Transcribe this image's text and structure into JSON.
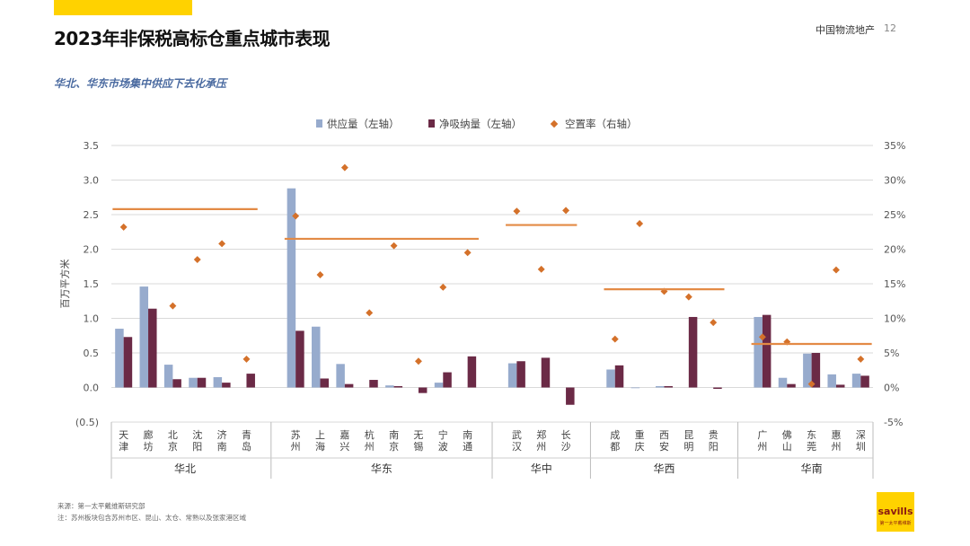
{
  "header": {
    "title": "2023年非保税高标仓重点城市表现",
    "brand": "中国物流地产",
    "page_number": "12",
    "subtitle": "华北、华东市场集中供应下去化承压"
  },
  "footnotes": {
    "source": "来源：第一太平戴维斯研究部",
    "note": "注：苏州板块包含苏州市区、昆山、太仓、常熟以及张家港区域"
  },
  "logo": {
    "wordmark": "savills",
    "sub": "第一太平戴维斯"
  },
  "colors": {
    "supply": "#97abcd",
    "absorption": "#6b2a46",
    "vacancy": "#d4712a",
    "avg_line": "#e38a45",
    "grid": "#d9d9d9",
    "brand_yellow": "#ffd200"
  },
  "chart_data": {
    "type": "bar",
    "legend_position": "top",
    "ylabel": "百万平方米",
    "ylim": [
      -0.5,
      3.5
    ],
    "yticks": [
      "(0.5)",
      "0.0",
      "0.5",
      "1.0",
      "1.5",
      "2.0",
      "2.5",
      "3.0",
      "3.5"
    ],
    "y2lim": [
      -5,
      35
    ],
    "y2ticks": [
      "-5%",
      "0%",
      "5%",
      "10%",
      "15%",
      "20%",
      "25%",
      "30%",
      "35%"
    ],
    "grid": true,
    "series": [
      {
        "name": "供应量（左轴）",
        "type": "bar"
      },
      {
        "name": "净吸纳量（左轴）",
        "type": "bar"
      },
      {
        "name": "空置率（右轴）",
        "type": "scatter"
      }
    ],
    "groups": [
      {
        "name": "华北",
        "regional_avg_vacancy": 25.8,
        "cities": [
          {
            "name": "天津",
            "supply": 0.85,
            "absorption": 0.73,
            "vacancy": 23.2
          },
          {
            "name": "廊坊",
            "supply": 1.46,
            "absorption": 1.14,
            "vacancy": null
          },
          {
            "name": "北京",
            "supply": 0.33,
            "absorption": 0.12,
            "vacancy": 11.8
          },
          {
            "name": "沈阳",
            "supply": 0.14,
            "absorption": 0.14,
            "vacancy": 18.5
          },
          {
            "name": "济南",
            "supply": 0.15,
            "absorption": 0.07,
            "vacancy": 20.8
          },
          {
            "name": "青岛",
            "supply": 0.0,
            "absorption": 0.2,
            "vacancy": 4.1
          }
        ]
      },
      {
        "name": "华东",
        "regional_avg_vacancy": 21.5,
        "cities": [
          {
            "name": "苏州",
            "supply": 2.88,
            "absorption": 0.82,
            "vacancy": 24.8
          },
          {
            "name": "上海",
            "supply": 0.88,
            "absorption": 0.13,
            "vacancy": 16.3
          },
          {
            "name": "嘉兴",
            "supply": 0.34,
            "absorption": 0.05,
            "vacancy": 31.8
          },
          {
            "name": "杭州",
            "supply": 0.0,
            "absorption": 0.11,
            "vacancy": 10.8
          },
          {
            "name": "南京",
            "supply": 0.03,
            "absorption": 0.02,
            "vacancy": 20.5
          },
          {
            "name": "无锡",
            "supply": 0.0,
            "absorption": -0.08,
            "vacancy": 3.8
          },
          {
            "name": "宁波",
            "supply": 0.07,
            "absorption": 0.22,
            "vacancy": 14.5
          },
          {
            "name": "南通",
            "supply": 0.0,
            "absorption": 0.45,
            "vacancy": 19.5
          }
        ]
      },
      {
        "name": "华中",
        "regional_avg_vacancy": 23.5,
        "cities": [
          {
            "name": "武汉",
            "supply": 0.35,
            "absorption": 0.38,
            "vacancy": 25.5
          },
          {
            "name": "郑州",
            "supply": 0.0,
            "absorption": 0.43,
            "vacancy": 17.1
          },
          {
            "name": "长沙",
            "supply": 0.0,
            "absorption": -0.25,
            "vacancy": 25.6
          }
        ]
      },
      {
        "name": "华西",
        "regional_avg_vacancy": 14.2,
        "cities": [
          {
            "name": "成都",
            "supply": 0.26,
            "absorption": 0.32,
            "vacancy": 7.0
          },
          {
            "name": "重庆",
            "supply": -0.01,
            "absorption": 0.0,
            "vacancy": 23.7
          },
          {
            "name": "西安",
            "supply": 0.02,
            "absorption": 0.02,
            "vacancy": 13.9
          },
          {
            "name": "昆明",
            "supply": 0.0,
            "absorption": 1.02,
            "vacancy": 13.1
          },
          {
            "name": "贵阳",
            "supply": 0.0,
            "absorption": -0.02,
            "vacancy": 9.4
          }
        ]
      },
      {
        "name": "华南",
        "regional_avg_vacancy": 6.3,
        "cities": [
          {
            "name": "广州",
            "supply": 1.02,
            "absorption": 1.05,
            "vacancy": 7.3
          },
          {
            "name": "佛山",
            "supply": 0.14,
            "absorption": 0.05,
            "vacancy": 6.6
          },
          {
            "name": "东莞",
            "supply": 0.49,
            "absorption": 0.5,
            "vacancy": 0.5
          },
          {
            "name": "惠州",
            "supply": 0.19,
            "absorption": 0.04,
            "vacancy": 17.0
          },
          {
            "name": "深圳",
            "supply": 0.2,
            "absorption": 0.17,
            "vacancy": 4.1
          }
        ]
      }
    ]
  }
}
